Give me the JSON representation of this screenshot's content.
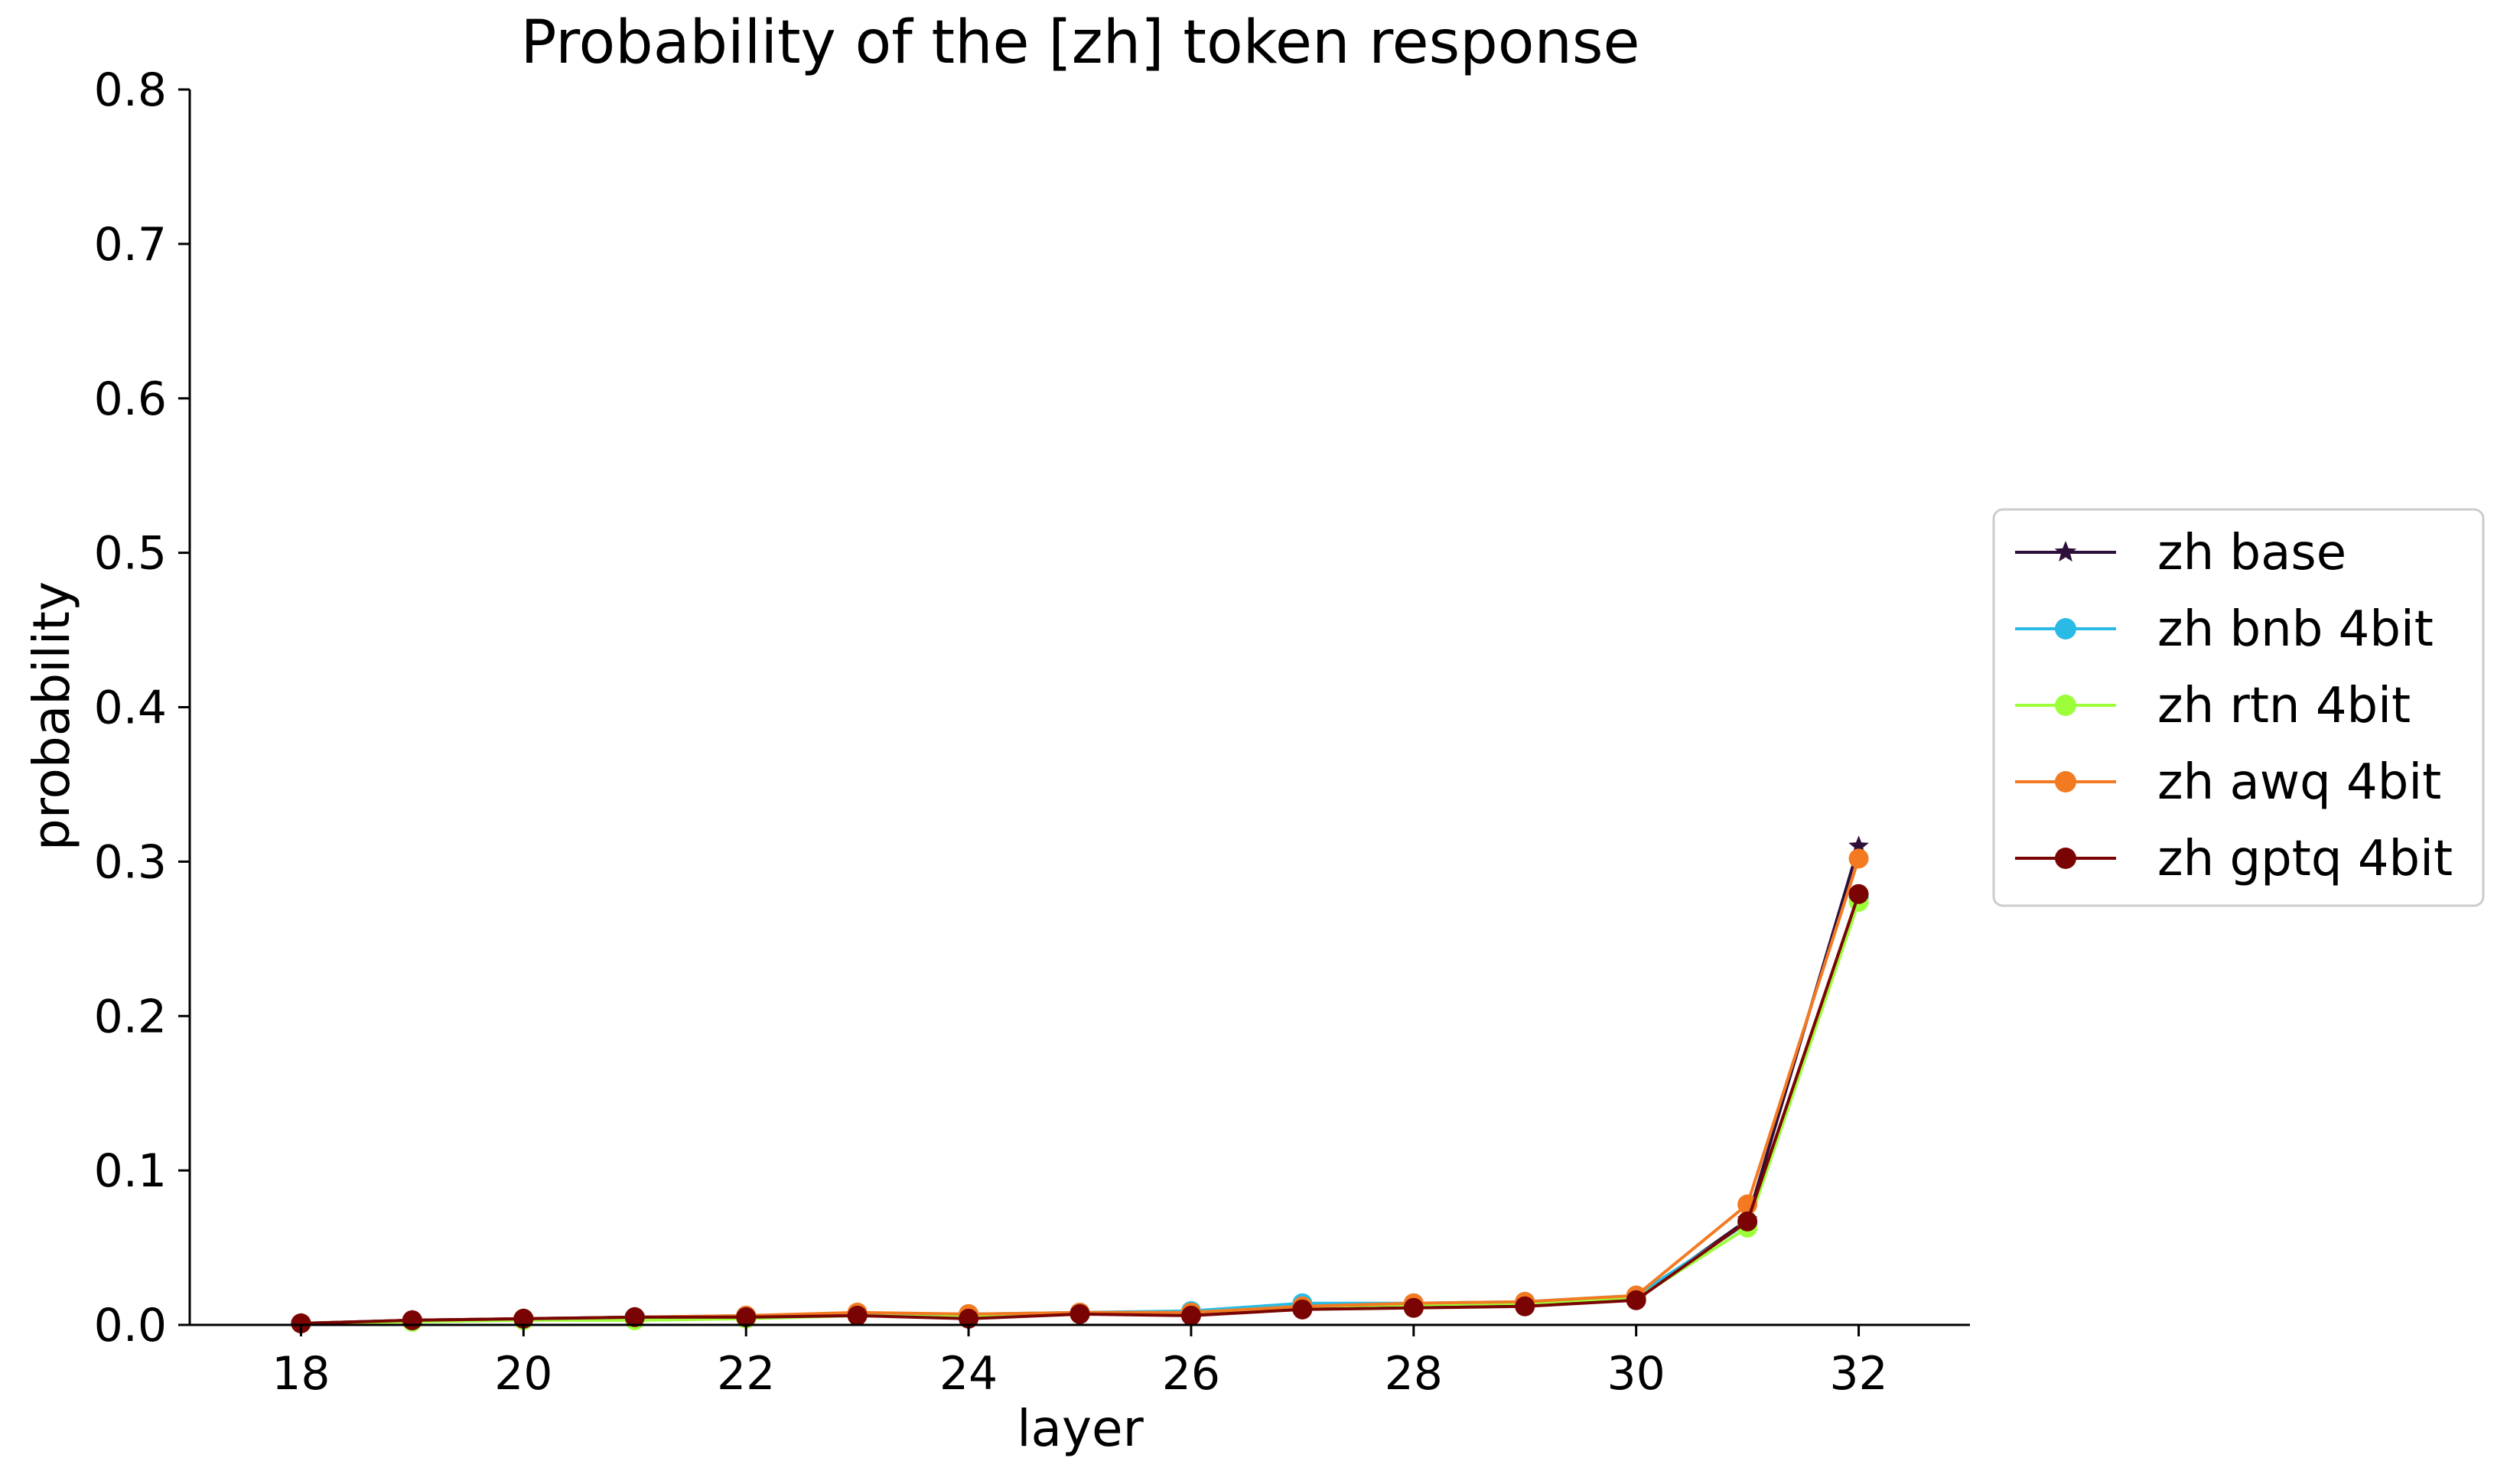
{
  "chart_data": {
    "type": "line",
    "title": "Probability of the [zh] token response",
    "xlabel": "layer",
    "ylabel": "probability",
    "xlim": [
      17,
      33
    ],
    "ylim": [
      0,
      0.8
    ],
    "xticks": [
      18,
      20,
      22,
      24,
      26,
      28,
      30,
      32
    ],
    "xtick_labels": [
      "18",
      "20",
      "22",
      "24",
      "26",
      "28",
      "30",
      "32"
    ],
    "yticks": [
      0,
      0.1,
      0.2,
      0.3,
      0.4,
      0.5,
      0.6,
      0.7,
      0.8
    ],
    "ytick_labels": [
      "0.0",
      "0.1",
      "0.2",
      "0.3",
      "0.4",
      "0.5",
      "0.6",
      "0.7",
      "0.8"
    ],
    "grid": false,
    "legend_position": "right, outside plot area",
    "x": [
      18,
      19,
      20,
      21,
      22,
      23,
      24,
      25,
      26,
      27,
      28,
      29,
      30,
      31,
      32
    ],
    "series": [
      {
        "name": "zh base",
        "color": "#2d0f3a",
        "marker": "star",
        "values": [
          0.001,
          0.003,
          0.004,
          0.005,
          0.005,
          0.006,
          0.005,
          0.007,
          0.007,
          0.011,
          0.012,
          0.013,
          0.017,
          0.068,
          0.31
        ]
      },
      {
        "name": "zh bnb 4bit",
        "color": "#29bbe6",
        "marker": "circle",
        "values": [
          0.001,
          0.003,
          0.004,
          0.005,
          0.006,
          0.007,
          0.007,
          0.008,
          0.009,
          0.014,
          0.014,
          0.015,
          0.019,
          0.066,
          0.277
        ]
      },
      {
        "name": "zh rtn 4bit",
        "color": "#9cff3a",
        "marker": "circle",
        "values": [
          0.001,
          0.002,
          0.003,
          0.003,
          0.004,
          0.006,
          0.005,
          0.007,
          0.008,
          0.012,
          0.013,
          0.014,
          0.017,
          0.063,
          0.274
        ]
      },
      {
        "name": "zh awq 4bit",
        "color": "#f47a22",
        "marker": "circle",
        "values": [
          0.001,
          0.003,
          0.004,
          0.005,
          0.006,
          0.008,
          0.007,
          0.008,
          0.008,
          0.012,
          0.014,
          0.015,
          0.019,
          0.078,
          0.302
        ]
      },
      {
        "name": "zh gptq 4bit",
        "color": "#7a0403",
        "marker": "circle",
        "values": [
          0.001,
          0.003,
          0.004,
          0.005,
          0.005,
          0.006,
          0.004,
          0.007,
          0.006,
          0.01,
          0.011,
          0.012,
          0.016,
          0.067,
          0.279
        ]
      }
    ]
  }
}
